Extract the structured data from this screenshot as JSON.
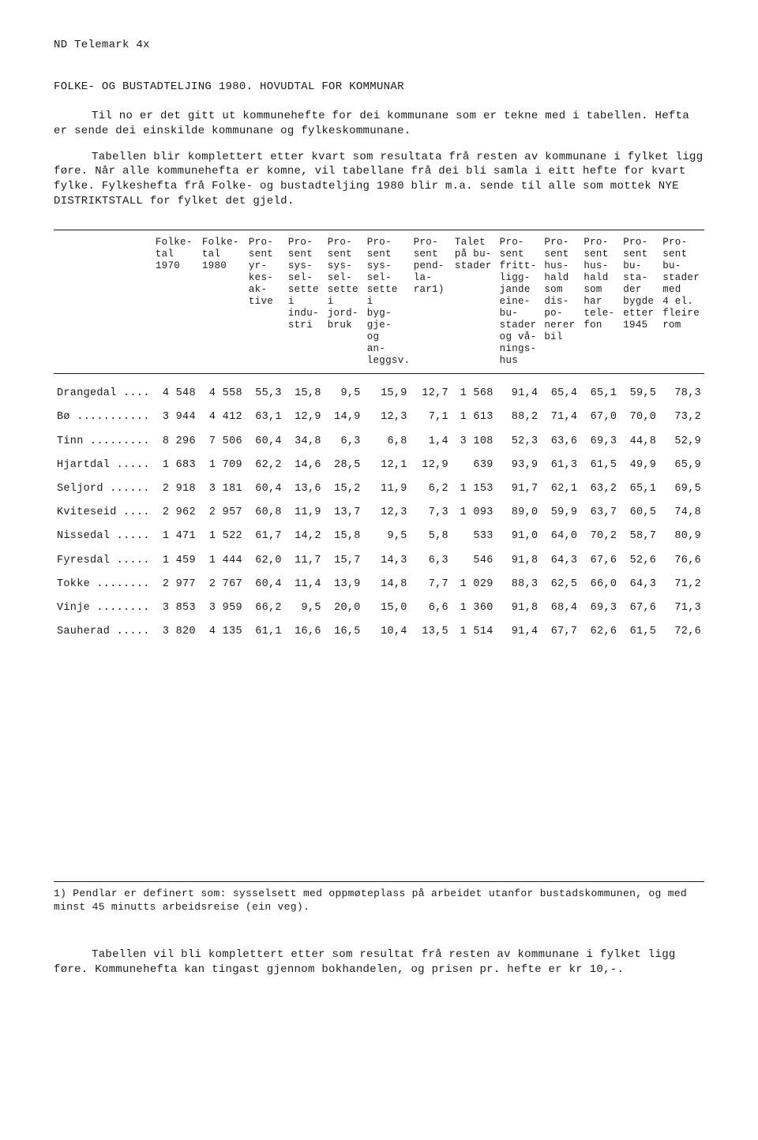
{
  "topcode": "ND  Telemark  4x",
  "title": "FOLKE- OG BUSTADTELJING 1980.  HOVUDTAL FOR KOMMUNAR",
  "para1": "Til no er det gitt ut kommunehefte for dei kommunane som er tekne med i tabellen.  Hefta er sende dei einskilde kommunane og fylkeskommunane.",
  "para2": "Tabellen blir komplettert etter kvart som resultata frå resten av kommunane i fylket ligg føre.  Når alle kommunehefta er komne, vil tabellane frå dei bli samla i eitt hefte for kvart fylke. Fylkeshefta frå Folke- og bustadteljing 1980 blir m.a. sende til alle som mottek NYE DISTRIKTSTALL for fylket det gjeld.",
  "columns": [
    "",
    "Folke-\ntal\n1970",
    "Folke-\ntal\n1980",
    "Pro-\nsent\nyr-\nkes-\nak-\ntive",
    "Pro-\nsent\nsys-\nsel-\nsette\ni\nindu-\nstri",
    "Pro-\nsent\nsys-\nsel-\nsette\ni\njord-\nbruk",
    "Pro-\nsent\nsys-\nsel-\nsette\ni\nbyg-\ngje-\nog\nan-\nleggsv.",
    "Pro-\nsent\npend-\nla-\nrar1)",
    "Talet\npå bu-\nstader",
    "Pro-\nsent\nfritt-\nligg-\njande\neine-\nbu-\nstader\nog vå-\nnings-\nhus",
    "Pro-\nsent\nhus-\nhald\nsom\ndis-\npo-\nnerer\nbil",
    "Pro-\nsent\nhus-\nhald\nsom\nhar\ntele-\nfon",
    "Pro-\nsent\nbu-\nsta-\nder\nbygde\netter\n1945",
    "Pro-\nsent\nbu-\nstader\nmed\n4 el.\nfleire\nrom"
  ],
  "rows": [
    [
      "Drangedal ....",
      "4 548",
      "4 558",
      "55,3",
      "15,8",
      "9,5",
      "15,9",
      "12,7",
      "1 568",
      "91,4",
      "65,4",
      "65,1",
      "59,5",
      "78,3"
    ],
    [
      "Bø ...........",
      "3 944",
      "4 412",
      "63,1",
      "12,9",
      "14,9",
      "12,3",
      "7,1",
      "1 613",
      "88,2",
      "71,4",
      "67,0",
      "70,0",
      "73,2"
    ],
    [
      "Tinn .........",
      "8 296",
      "7 506",
      "60,4",
      "34,8",
      "6,3",
      "6,8",
      "1,4",
      "3 108",
      "52,3",
      "63,6",
      "69,3",
      "44,8",
      "52,9"
    ],
    [
      "Hjartdal .....",
      "1 683",
      "1 709",
      "62,2",
      "14,6",
      "28,5",
      "12,1",
      "12,9",
      "639",
      "93,9",
      "61,3",
      "61,5",
      "49,9",
      "65,9"
    ],
    [
      "Seljord ......",
      "2 918",
      "3 181",
      "60,4",
      "13,6",
      "15,2",
      "11,9",
      "6,2",
      "1 153",
      "91,7",
      "62,1",
      "63,2",
      "65,1",
      "69,5"
    ],
    [
      "Kviteseid ....",
      "2 962",
      "2 957",
      "60,8",
      "11,9",
      "13,7",
      "12,3",
      "7,3",
      "1 093",
      "89,0",
      "59,9",
      "63,7",
      "60,5",
      "74,8"
    ],
    [
      "Nissedal .....",
      "1 471",
      "1 522",
      "61,7",
      "14,2",
      "15,8",
      "9,5",
      "5,8",
      "533",
      "91,0",
      "64,0",
      "70,2",
      "58,7",
      "80,9"
    ],
    [
      "Fyresdal .....",
      "1 459",
      "1 444",
      "62,0",
      "11,7",
      "15,7",
      "14,3",
      "6,3",
      "546",
      "91,8",
      "64,3",
      "67,6",
      "52,6",
      "76,6"
    ],
    [
      "Tokke ........",
      "2 977",
      "2 767",
      "60,4",
      "11,4",
      "13,9",
      "14,8",
      "7,7",
      "1 029",
      "88,3",
      "62,5",
      "66,0",
      "64,3",
      "71,2"
    ],
    [
      "Vinje ........",
      "3 853",
      "3 959",
      "66,2",
      "9,5",
      "20,0",
      "15,0",
      "6,6",
      "1 360",
      "91,8",
      "68,4",
      "69,3",
      "67,6",
      "71,3"
    ],
    [
      "Sauherad .....",
      "3 820",
      "4 135",
      "61,1",
      "16,6",
      "16,5",
      "10,4",
      "13,5",
      "1 514",
      "91,4",
      "67,7",
      "62,6",
      "61,5",
      "72,6"
    ]
  ],
  "footnote": "1) Pendlar er definert som:  sysselsett med oppmøteplass på arbeidet utanfor bustadskommunen, og med minst 45 minutts arbeidsreise (ein veg).",
  "closing": "Tabellen vil bli komplettert etter som resultat frå resten av kommunane i fylket ligg føre. Kommunehefta kan tingast gjennom bokhandelen, og prisen pr. hefte er kr 10,-."
}
